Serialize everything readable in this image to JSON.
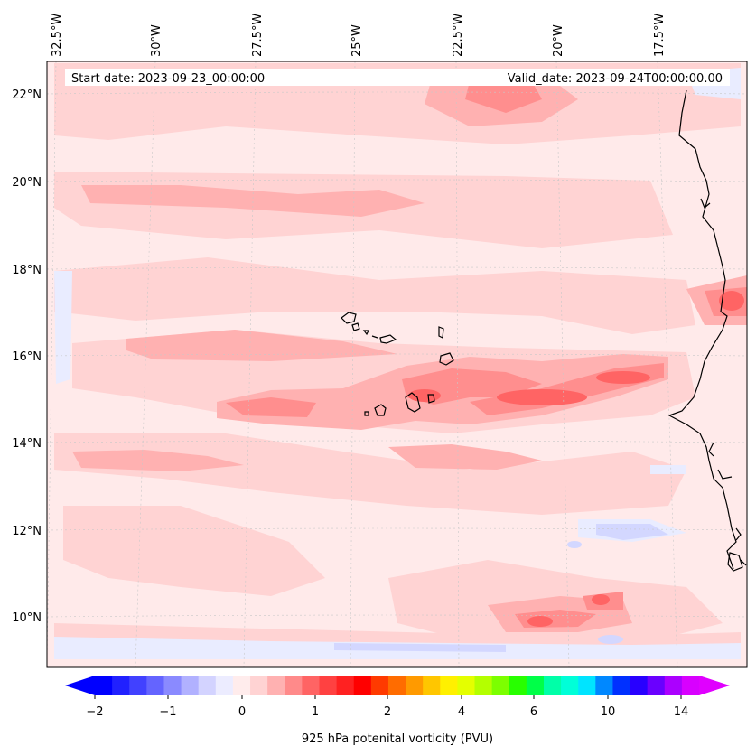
{
  "map": {
    "start_date": "Start date: 2023-09-23_00:00:00",
    "valid_date": "Valid_date: 2023-09-24T00:00:00.00",
    "lon_labels": [
      "32.5°W",
      "30°W",
      "27.5°W",
      "25°W",
      "22.5°W",
      "20°W",
      "17.5°W"
    ],
    "lat_labels": [
      "22°N",
      "20°N",
      "18°N",
      "16°N",
      "14°N",
      "12°N",
      "10°N"
    ],
    "colors": {
      "bg": "#ffeaea",
      "light": "#ffd3d3",
      "medium": "#ffb1b1",
      "strong": "#ff8e8e",
      "peak": "#ff6464",
      "negative": "#e9ecff",
      "negative_strong": "#d3d7ff",
      "coast": "#000000",
      "grid": "#bdbdbd"
    }
  },
  "colorbar": {
    "label": "925 hPa potenital vorticity (PVU)",
    "ticks": [
      "−2",
      "−1",
      "0",
      "1",
      "2",
      "4",
      "6",
      "10",
      "14"
    ],
    "colors": [
      "#0000ff",
      "#2121ff",
      "#4141ff",
      "#6464ff",
      "#8a8aff",
      "#b1b1ff",
      "#d3d3ff",
      "#ececff",
      "#ffecec",
      "#ffd3d3",
      "#ffb1b1",
      "#ff8a8a",
      "#ff6464",
      "#ff4141",
      "#ff2121",
      "#ff0000",
      "#ff3a00",
      "#ff6c00",
      "#ff9a00",
      "#ffc600",
      "#fff000",
      "#e4ff00",
      "#b4ff00",
      "#7cff00",
      "#28ff00",
      "#00ff48",
      "#00ffa8",
      "#00ffd8",
      "#00e4ff",
      "#0088ff",
      "#0030ff",
      "#2800ff",
      "#6a00ff",
      "#ab00ff",
      "#d800ff"
    ],
    "under_color": "#0000ff",
    "over_color": "#e000ff"
  }
}
